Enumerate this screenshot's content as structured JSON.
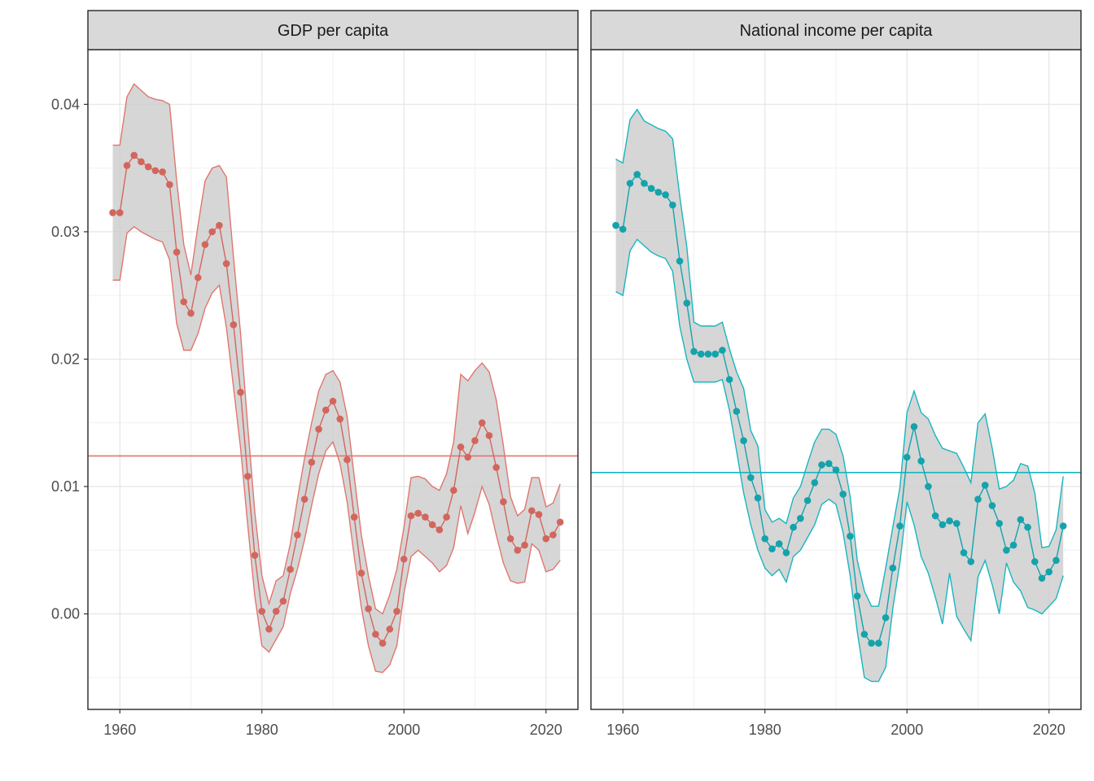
{
  "chart_data": {
    "type": "line",
    "title": "",
    "xlabel": "",
    "ylabel": "",
    "xlim": [
      1955.5,
      2024.5
    ],
    "ylim": [
      -0.0075,
      0.0443
    ],
    "x_ticks": [
      1960,
      1980,
      2000,
      2020
    ],
    "y_ticks": [
      0.0,
      0.01,
      0.02,
      0.03,
      0.04
    ],
    "y_tick_labels": [
      "0.00",
      "0.01",
      "0.02",
      "0.03",
      "0.04"
    ],
    "grid": true,
    "legend": "none",
    "facets": [
      {
        "strip": "GDP per capita",
        "color": "#E0766E",
        "point_color": "#D2665D",
        "hline": 0.0124,
        "x": [
          1959,
          1960,
          1961,
          1962,
          1963,
          1964,
          1965,
          1966,
          1967,
          1968,
          1969,
          1970,
          1971,
          1972,
          1973,
          1974,
          1975,
          1976,
          1977,
          1978,
          1979,
          1980,
          1981,
          1982,
          1983,
          1984,
          1985,
          1986,
          1987,
          1988,
          1989,
          1990,
          1991,
          1992,
          1993,
          1994,
          1995,
          1996,
          1997,
          1998,
          1999,
          2000,
          2001,
          2002,
          2003,
          2004,
          2005,
          2006,
          2007,
          2008,
          2009,
          2010,
          2011,
          2012,
          2013,
          2014,
          2015,
          2016,
          2017,
          2018,
          2019,
          2020,
          2021,
          2022
        ],
        "y": [
          0.0315,
          0.0315,
          0.0352,
          0.036,
          0.0355,
          0.0351,
          0.0348,
          0.0347,
          0.0337,
          0.0284,
          0.0245,
          0.0236,
          0.0264,
          0.029,
          0.03,
          0.0305,
          0.0275,
          0.0227,
          0.0174,
          0.0108,
          0.0046,
          0.0002,
          -0.0012,
          0.0002,
          0.001,
          0.0035,
          0.0062,
          0.009,
          0.0119,
          0.0145,
          0.016,
          0.0167,
          0.0153,
          0.0121,
          0.0076,
          0.0032,
          0.0004,
          -0.0016,
          -0.0023,
          -0.0012,
          0.0002,
          0.0043,
          0.0077,
          0.0079,
          0.0076,
          0.007,
          0.0066,
          0.0076,
          0.0097,
          0.0131,
          0.0123,
          0.0136,
          0.015,
          0.014,
          0.0115,
          0.0088,
          0.0059,
          0.005,
          0.0054,
          0.0081,
          0.0078,
          0.0059,
          0.0062,
          0.0072
        ],
        "lower": [
          0.0262,
          0.0262,
          0.0299,
          0.0304,
          0.03,
          0.0297,
          0.0294,
          0.0292,
          0.0278,
          0.0228,
          0.0207,
          0.0207,
          0.022,
          0.024,
          0.0252,
          0.0258,
          0.0225,
          0.0178,
          0.013,
          0.007,
          0.0014,
          -0.0025,
          -0.003,
          -0.002,
          -0.001,
          0.0016,
          0.0035,
          0.0058,
          0.0085,
          0.011,
          0.0128,
          0.0135,
          0.0118,
          0.0088,
          0.0045,
          0.0005,
          -0.0025,
          -0.0045,
          -0.0046,
          -0.004,
          -0.0025,
          0.0016,
          0.0045,
          0.005,
          0.0045,
          0.004,
          0.0033,
          0.0038,
          0.0052,
          0.0085,
          0.0063,
          0.008,
          0.01,
          0.0086,
          0.0062,
          0.004,
          0.0026,
          0.0024,
          0.0025,
          0.0055,
          0.005,
          0.0033,
          0.0035,
          0.0042
        ],
        "upper": [
          0.0368,
          0.0368,
          0.0406,
          0.0416,
          0.0411,
          0.0406,
          0.0404,
          0.0403,
          0.04,
          0.034,
          0.029,
          0.0266,
          0.0305,
          0.034,
          0.035,
          0.0352,
          0.0343,
          0.028,
          0.022,
          0.0148,
          0.008,
          0.003,
          0.0008,
          0.0026,
          0.003,
          0.0055,
          0.009,
          0.0122,
          0.015,
          0.0175,
          0.0188,
          0.0191,
          0.0182,
          0.0155,
          0.0108,
          0.0062,
          0.003,
          0.0004,
          0.0,
          0.0015,
          0.0035,
          0.0068,
          0.0107,
          0.0108,
          0.0106,
          0.01,
          0.0097,
          0.011,
          0.0135,
          0.0188,
          0.0183,
          0.0191,
          0.0197,
          0.019,
          0.0168,
          0.0132,
          0.0092,
          0.0077,
          0.0082,
          0.0107,
          0.0107,
          0.0084,
          0.0087,
          0.0102
        ]
      },
      {
        "strip": "National income per capita",
        "color": "#17B6BF",
        "point_color": "#14A3AB",
        "hline": 0.0111,
        "x": [
          1959,
          1960,
          1961,
          1962,
          1963,
          1964,
          1965,
          1966,
          1967,
          1968,
          1969,
          1970,
          1971,
          1972,
          1973,
          1974,
          1975,
          1976,
          1977,
          1978,
          1979,
          1980,
          1981,
          1982,
          1983,
          1984,
          1985,
          1986,
          1987,
          1988,
          1989,
          1990,
          1991,
          1992,
          1993,
          1994,
          1995,
          1996,
          1997,
          1998,
          1999,
          2000,
          2001,
          2002,
          2003,
          2004,
          2005,
          2006,
          2007,
          2008,
          2009,
          2010,
          2011,
          2012,
          2013,
          2014,
          2015,
          2016,
          2017,
          2018,
          2019,
          2020,
          2021,
          2022
        ],
        "y": [
          0.0305,
          0.0302,
          0.0338,
          0.0345,
          0.0338,
          0.0334,
          0.0331,
          0.0329,
          0.0321,
          0.0277,
          0.0244,
          0.0206,
          0.0204,
          0.0204,
          0.0204,
          0.0207,
          0.0184,
          0.0159,
          0.0136,
          0.0107,
          0.0091,
          0.0059,
          0.0051,
          0.0055,
          0.0048,
          0.0068,
          0.0075,
          0.0089,
          0.0103,
          0.0117,
          0.0118,
          0.0113,
          0.0094,
          0.0061,
          0.0014,
          -0.0016,
          -0.0023,
          -0.0023,
          -0.0003,
          0.0036,
          0.0069,
          0.0123,
          0.0147,
          0.012,
          0.01,
          0.0077,
          0.007,
          0.0073,
          0.0071,
          0.0048,
          0.0041,
          0.009,
          0.0101,
          0.0085,
          0.0071,
          0.005,
          0.0054,
          0.0074,
          0.0068,
          0.0041,
          0.0028,
          0.0033,
          0.0042,
          0.0069
        ],
        "lower": [
          0.0253,
          0.025,
          0.0285,
          0.0294,
          0.0289,
          0.0284,
          0.0281,
          0.0279,
          0.0269,
          0.0226,
          0.02,
          0.0182,
          0.0182,
          0.0182,
          0.0182,
          0.0184,
          0.016,
          0.0128,
          0.0095,
          0.007,
          0.005,
          0.0036,
          0.003,
          0.0035,
          0.0025,
          0.0045,
          0.005,
          0.006,
          0.007,
          0.0086,
          0.009,
          0.0086,
          0.0064,
          0.003,
          -0.0014,
          -0.005,
          -0.0053,
          -0.0053,
          -0.0042,
          0.0004,
          0.004,
          0.0088,
          0.007,
          0.0045,
          0.0032,
          0.0013,
          -0.0008,
          0.0032,
          -0.0002,
          -0.0012,
          -0.0021,
          0.0029,
          0.0042,
          0.0023,
          0.0,
          0.004,
          0.0025,
          0.0018,
          0.0005,
          0.0003,
          0.0,
          0.0006,
          0.0012,
          0.003
        ],
        "upper": [
          0.0357,
          0.0354,
          0.0388,
          0.0396,
          0.0387,
          0.0384,
          0.0381,
          0.0379,
          0.0373,
          0.0328,
          0.0288,
          0.0229,
          0.0226,
          0.0226,
          0.0226,
          0.0229,
          0.0208,
          0.019,
          0.0177,
          0.0144,
          0.0132,
          0.0082,
          0.0072,
          0.0075,
          0.0071,
          0.0091,
          0.01,
          0.0118,
          0.0135,
          0.0145,
          0.0145,
          0.0141,
          0.0124,
          0.0092,
          0.0042,
          0.0018,
          0.0006,
          0.0006,
          0.0036,
          0.0068,
          0.0099,
          0.0158,
          0.0175,
          0.0158,
          0.0153,
          0.014,
          0.013,
          0.0128,
          0.0126,
          0.0115,
          0.0103,
          0.015,
          0.0157,
          0.013,
          0.0098,
          0.01,
          0.0105,
          0.0118,
          0.0116,
          0.0095,
          0.0052,
          0.0053,
          0.0066,
          0.0108
        ]
      }
    ]
  }
}
